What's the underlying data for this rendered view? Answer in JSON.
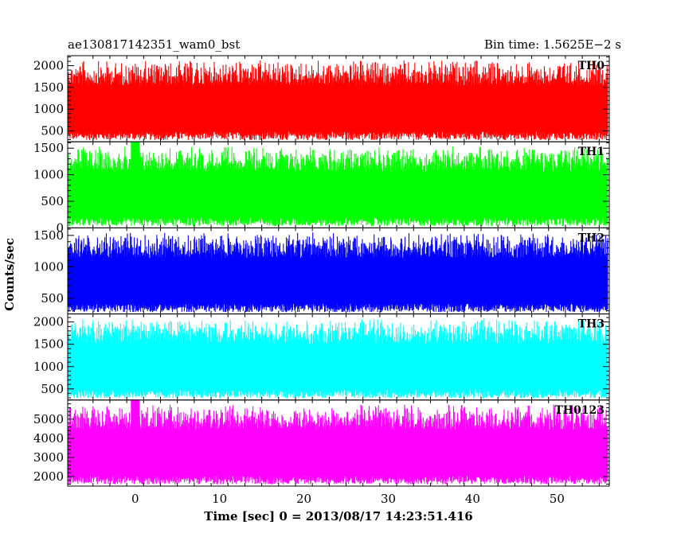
{
  "header": {
    "file_name": "ae130817142351_wam0_bst",
    "bin_time": "Bin time: 1.5625E−2 s"
  },
  "axes": {
    "xlabel": "Time [sec] 0 = 2013/08/17 14:23:51.416",
    "ylabel": "Counts/sec"
  },
  "chart_data": [
    {
      "type": "line",
      "name": "TH0",
      "label": "TH0",
      "color": "#ff0000",
      "xlim": [
        -8.0,
        56.2
      ],
      "ylim": [
        250,
        2230
      ],
      "yticks": [
        500,
        1000,
        1500,
        2000
      ],
      "xticks": [
        0,
        10,
        20,
        30,
        40,
        50
      ],
      "baseline": 1000,
      "noise_low": 250,
      "noise_high": 2230,
      "feature": "bursty fluctuation around ~1000 counts/sec"
    },
    {
      "type": "line",
      "name": "TH1",
      "label": "TH1",
      "color": "#00ff00",
      "xlim": [
        -8.0,
        56.2
      ],
      "ylim": [
        0,
        1620
      ],
      "yticks": [
        0,
        500,
        1000,
        1500
      ],
      "xticks": [
        0,
        10,
        20,
        30,
        40,
        50
      ],
      "baseline": 560,
      "noise_low": 0,
      "noise_high": 1620,
      "feature": "spike near t=0"
    },
    {
      "type": "line",
      "name": "TH2",
      "label": "TH2",
      "color": "#0000ff",
      "xlim": [
        -8.0,
        56.2
      ],
      "ylim": [
        250,
        1620
      ],
      "yticks": [
        500,
        1000,
        1500
      ],
      "xticks": [
        0,
        10,
        20,
        30,
        40,
        50
      ],
      "baseline": 800,
      "noise_low": 250,
      "noise_high": 1620
    },
    {
      "type": "line",
      "name": "TH3",
      "label": "TH3",
      "color": "#00ffff",
      "xlim": [
        -8.0,
        56.2
      ],
      "ylim": [
        250,
        2180
      ],
      "yticks": [
        500,
        1000,
        1500,
        2000
      ],
      "xticks": [
        0,
        10,
        20,
        30,
        40,
        50
      ],
      "baseline": 1050,
      "noise_low": 250,
      "noise_high": 2180
    },
    {
      "type": "line",
      "name": "TH0123",
      "label": "TH0123",
      "color": "#ff00ff",
      "xlim": [
        -8.0,
        56.2
      ],
      "ylim": [
        1500,
        6000
      ],
      "yticks": [
        2000,
        3000,
        4000,
        5000
      ],
      "xticks": [
        0,
        10,
        20,
        30,
        40,
        50
      ],
      "baseline": 3500,
      "noise_low": 1500,
      "noise_high": 6000,
      "feature": "spike near t=0"
    }
  ]
}
